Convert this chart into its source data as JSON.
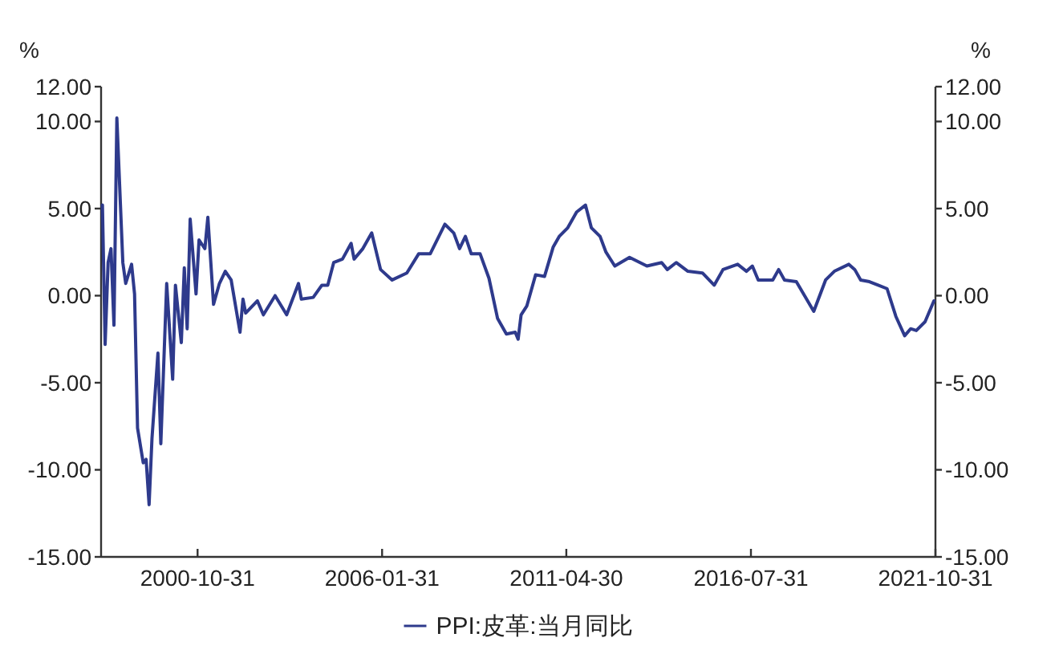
{
  "chart_data": {
    "type": "line",
    "ylabel": "%",
    "y2label": "%",
    "legend": "bottom",
    "xlim": [
      "1998-02-01",
      "2021-10-31"
    ],
    "xticks": [
      "2000-10-31",
      "2006-01-31",
      "2011-04-30",
      "2016-07-31",
      "2021-10-31"
    ],
    "ylim": [
      -15,
      12
    ],
    "yticks": [
      {
        "value": -15,
        "label": "-15.00"
      },
      {
        "value": -10,
        "label": "-10.00"
      },
      {
        "value": -5,
        "label": "-5.00"
      },
      {
        "value": 0,
        "label": "0.00"
      },
      {
        "value": 5,
        "label": "5.00"
      },
      {
        "value": 10,
        "label": "10.00"
      },
      {
        "value": 12,
        "label": "12.00"
      }
    ],
    "y2lim": [
      -15,
      12
    ],
    "y2ticks": [
      {
        "value": -15,
        "label": "-15.00"
      },
      {
        "value": -10,
        "label": "-10.00"
      },
      {
        "value": -5,
        "label": "-5.00"
      },
      {
        "value": 0,
        "label": "0.00"
      },
      {
        "value": 5,
        "label": "5.00"
      },
      {
        "value": 10,
        "label": "10.00"
      },
      {
        "value": 12,
        "label": "12.00"
      }
    ],
    "x": [
      "1998-02",
      "1998-03",
      "1998-04",
      "1998-05",
      "1998-06",
      "1998-07",
      "1998-09",
      "1998-10",
      "1998-12",
      "1999-01",
      "1999-02",
      "1999-04",
      "1999-05",
      "1999-06",
      "1999-07",
      "1999-09",
      "1999-10",
      "1999-12",
      "2000-02",
      "2000-03",
      "2000-05",
      "2000-06",
      "2000-07",
      "2000-08",
      "2000-10",
      "2000-11",
      "2001-01",
      "2001-02",
      "2001-04",
      "2001-06",
      "2001-08",
      "2001-10",
      "2002-01",
      "2002-02",
      "2002-03",
      "2002-07",
      "2002-09",
      "2003-01",
      "2003-05",
      "2003-09",
      "2003-10",
      "2004-02",
      "2004-05",
      "2004-07",
      "2004-09",
      "2004-12",
      "2005-03",
      "2005-04",
      "2005-07",
      "2005-10",
      "2006-01",
      "2006-05",
      "2006-10",
      "2007-02",
      "2007-06",
      "2007-11",
      "2008-02",
      "2008-04",
      "2008-06",
      "2008-08",
      "2008-11",
      "2009-02",
      "2009-05",
      "2009-08",
      "2009-11",
      "2009-12",
      "2010-01",
      "2010-03",
      "2010-06",
      "2010-09",
      "2010-12",
      "2011-02",
      "2011-05",
      "2011-08",
      "2011-11",
      "2012-01",
      "2012-04",
      "2012-06",
      "2012-09",
      "2013-02",
      "2013-08",
      "2014-01",
      "2014-03",
      "2014-06",
      "2014-10",
      "2015-03",
      "2015-07",
      "2015-10",
      "2016-03",
      "2016-06",
      "2016-08",
      "2016-10",
      "2017-03",
      "2017-05",
      "2017-07",
      "2017-11",
      "2018-05",
      "2018-09",
      "2018-12",
      "2019-05",
      "2019-07",
      "2019-09",
      "2019-12",
      "2020-03",
      "2020-06",
      "2020-09",
      "2020-12",
      "2021-02",
      "2021-04",
      "2021-07",
      "2021-10"
    ],
    "series": [
      {
        "name": "PPI:皮革:当月同比",
        "color": "#2e3a8c",
        "values": [
          5.2,
          -2.8,
          1.9,
          2.7,
          -1.7,
          10.2,
          1.9,
          0.7,
          1.8,
          0.1,
          -7.6,
          -9.6,
          -9.4,
          -12.0,
          -8.2,
          -3.3,
          -8.5,
          0.7,
          -4.8,
          0.6,
          -2.7,
          1.6,
          -1.9,
          4.4,
          0.1,
          3.2,
          2.7,
          4.5,
          -0.5,
          0.7,
          1.4,
          0.9,
          -2.1,
          -0.2,
          -1.0,
          -0.3,
          -1.1,
          0.0,
          -1.1,
          0.7,
          -0.2,
          -0.1,
          0.6,
          0.6,
          1.9,
          2.1,
          3.0,
          2.1,
          2.7,
          3.6,
          1.5,
          0.9,
          1.3,
          2.4,
          2.4,
          4.1,
          3.6,
          2.7,
          3.4,
          2.4,
          2.4,
          1.0,
          -1.3,
          -2.2,
          -2.1,
          -2.5,
          -1.1,
          -0.6,
          1.2,
          1.1,
          2.8,
          3.4,
          3.9,
          4.8,
          5.2,
          3.9,
          3.4,
          2.5,
          1.7,
          2.2,
          1.7,
          1.9,
          1.5,
          1.9,
          1.4,
          1.3,
          0.6,
          1.5,
          1.8,
          1.4,
          1.7,
          0.9,
          0.9,
          1.5,
          0.9,
          0.8,
          -0.9,
          0.9,
          1.4,
          1.8,
          1.5,
          0.9,
          0.8,
          0.6,
          0.4,
          -1.2,
          -2.3,
          -1.9,
          -2.0,
          -1.5,
          -0.3
        ]
      }
    ]
  }
}
